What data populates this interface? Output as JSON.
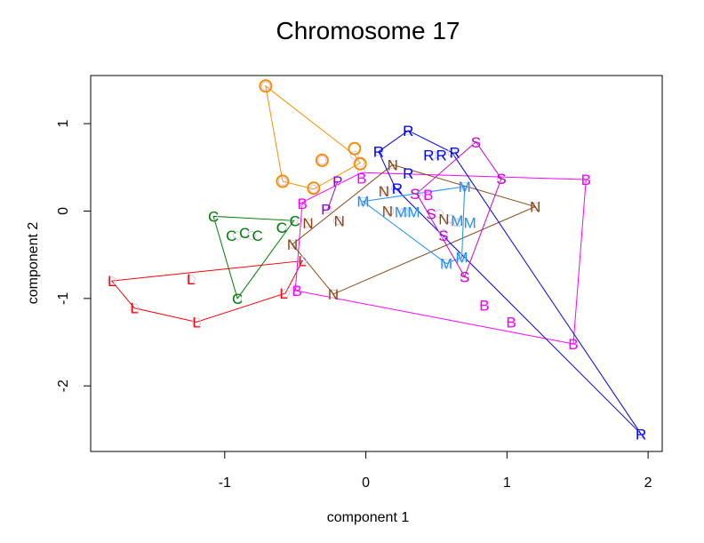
{
  "chart_data": {
    "type": "scatter",
    "title": "Chromosome 17",
    "xlabel": "component 1",
    "ylabel": "component 2",
    "xlim": [
      -1.95,
      2.1
    ],
    "ylim": [
      -2.75,
      1.55
    ],
    "xticks": [
      -1,
      0,
      1,
      2
    ],
    "yticks": [
      -2,
      -1,
      0,
      1
    ],
    "grid": false,
    "legend": "none",
    "marker_color": "#c8c8f0",
    "series": [
      {
        "name": "L",
        "label": "L",
        "color": "#ff0000",
        "points": [
          [
            -1.8,
            -0.8
          ],
          [
            -1.24,
            -0.78
          ],
          [
            -1.64,
            -1.11
          ],
          [
            -1.2,
            -1.27
          ],
          [
            -0.57,
            -0.94
          ],
          [
            -0.45,
            -0.57
          ]
        ],
        "hull": [
          0,
          5,
          4,
          3,
          2
        ]
      },
      {
        "name": "C",
        "label": "C",
        "color": "#007f00",
        "points": [
          [
            -1.08,
            -0.06
          ],
          [
            -0.91,
            -0.28
          ],
          [
            -0.86,
            -0.25
          ],
          [
            -0.81,
            -0.28
          ],
          [
            -0.59,
            -0.19
          ],
          [
            -0.51,
            -0.11
          ],
          [
            -0.91,
            -1.0
          ]
        ],
        "hull": [
          0,
          5,
          6
        ]
      },
      {
        "name": "O",
        "label": "O",
        "color": "#ff8c00",
        "points": [
          [
            -0.71,
            1.43
          ],
          [
            -0.08,
            0.64
          ],
          [
            -0.04,
            0.55
          ],
          [
            -0.31,
            0.58
          ],
          [
            -0.59,
            0.34
          ],
          [
            -0.37,
            0.25
          ]
        ],
        "hull": [
          0,
          1,
          2,
          5,
          4
        ]
      },
      {
        "name": "P",
        "label": "P",
        "color": "#9400d3",
        "points": [
          [
            -0.2,
            0.34
          ],
          [
            -0.27,
            0.02
          ]
        ],
        "hull": []
      },
      {
        "name": "B",
        "label": "B",
        "color": "#ff00ff",
        "points": [
          [
            -0.45,
            0.1
          ],
          [
            -0.03,
            0.44
          ],
          [
            0.43,
            0.19
          ],
          [
            1.56,
            0.36
          ],
          [
            -0.5,
            -0.91
          ],
          [
            0.84,
            -1.08
          ],
          [
            1.03,
            -1.27
          ],
          [
            1.47,
            -1.52
          ]
        ],
        "hull": [
          0,
          1,
          3,
          7,
          4
        ]
      },
      {
        "name": "N",
        "label": "N",
        "color": "#8b4513",
        "points": [
          [
            0.19,
            0.53
          ],
          [
            0.14,
            0.23
          ],
          [
            0.17,
            0.0
          ],
          [
            -0.2,
            -0.11
          ],
          [
            -0.41,
            -0.14
          ],
          [
            -0.52,
            -0.38
          ],
          [
            -0.23,
            -0.95
          ],
          [
            0.6,
            -0.09
          ],
          [
            1.2,
            0.05
          ]
        ],
        "hull": [
          0,
          8,
          6,
          5
        ]
      },
      {
        "name": "R",
        "label": "R",
        "color": "#0000ff",
        "points": [
          [
            0.3,
            0.92
          ],
          [
            0.09,
            0.68
          ],
          [
            0.48,
            0.64
          ],
          [
            0.52,
            0.64
          ],
          [
            0.61,
            0.67
          ],
          [
            0.3,
            0.43
          ],
          [
            0.21,
            0.26
          ],
          [
            1.95,
            -2.55
          ]
        ],
        "hull": [
          0,
          4,
          7,
          6,
          1
        ]
      },
      {
        "name": "M",
        "label": "M",
        "color": "#1e90ff",
        "points": [
          [
            -0.02,
            0.11
          ],
          [
            0.27,
            -0.01
          ],
          [
            0.3,
            -0.01
          ],
          [
            0.63,
            -0.13
          ],
          [
            0.65,
            -0.13
          ],
          [
            0.7,
            0.28
          ],
          [
            0.57,
            -0.6
          ],
          [
            0.68,
            -0.53
          ]
        ],
        "hull": [
          0,
          5,
          7,
          6
        ]
      },
      {
        "name": "S",
        "label": "S",
        "color": "#cc00cc",
        "points": [
          [
            0.78,
            0.79
          ],
          [
            0.96,
            0.37
          ],
          [
            0.36,
            0.2
          ],
          [
            0.52,
            -0.03
          ],
          [
            0.55,
            -0.26
          ],
          [
            0.7,
            -0.75
          ]
        ],
        "hull": [
          0,
          1,
          5,
          2
        ]
      }
    ]
  }
}
